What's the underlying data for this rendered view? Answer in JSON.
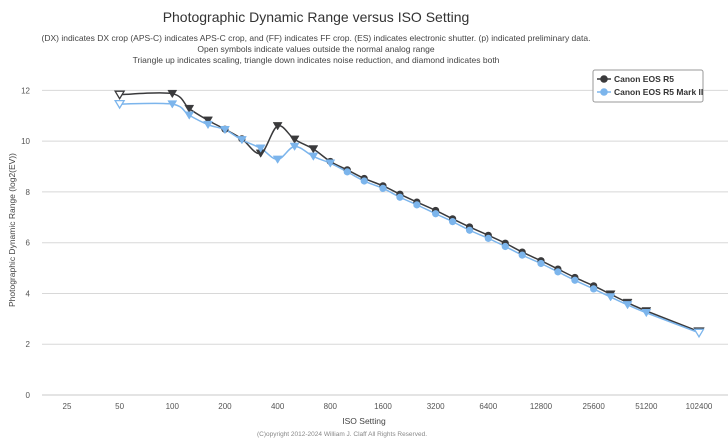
{
  "chart_data": {
    "type": "line",
    "title": "Photographic Dynamic Range versus ISO Setting",
    "subtitle_lines": [
      "(DX) indicates DX crop (APS-C) indicates APS-C crop, and (FF) indicates FF crop. (ES) indicates electronic shutter. (p) indicated preliminary data.",
      "Open symbols indicate values outside the normal analog range",
      "Triangle up indicates scaling, triangle down indicates noise reduction, and diamond indicates both"
    ],
    "xlabel": "ISO Setting",
    "ylabel": "Photographic Dynamic Range (log2(EV))",
    "x_scale": "log2",
    "x_ticks": [
      25,
      50,
      100,
      200,
      400,
      800,
      1600,
      3200,
      6400,
      12800,
      25600,
      51200,
      102400
    ],
    "x_range": [
      18,
      150000
    ],
    "y_ticks": [
      0,
      2,
      4,
      6,
      8,
      10,
      12
    ],
    "ylim": [
      0,
      13
    ],
    "grid": "horizontal",
    "legend_position": "top-right",
    "credit": "(C)opyright 2012-2024 William J. Claff All Rights Reserved.",
    "series": [
      {
        "name": "Canon EOS R5",
        "color": "#3a3a3c",
        "points": [
          {
            "x": 50,
            "y": 11.83,
            "m": "open-down"
          },
          {
            "x": 100,
            "y": 11.87,
            "m": "down"
          },
          {
            "x": 125,
            "y": 11.28,
            "m": "down"
          },
          {
            "x": 160,
            "y": 10.82,
            "m": "down"
          },
          {
            "x": 200,
            "y": 10.47,
            "m": "circle"
          },
          {
            "x": 250,
            "y": 10.09,
            "m": "circle"
          },
          {
            "x": 320,
            "y": 9.52,
            "m": "down"
          },
          {
            "x": 400,
            "y": 10.6,
            "m": "down"
          },
          {
            "x": 500,
            "y": 10.07,
            "m": "down"
          },
          {
            "x": 640,
            "y": 9.69,
            "m": "down"
          },
          {
            "x": 800,
            "y": 9.2,
            "m": "circle"
          },
          {
            "x": 1000,
            "y": 8.87,
            "m": "circle"
          },
          {
            "x": 1250,
            "y": 8.53,
            "m": "circle"
          },
          {
            "x": 1600,
            "y": 8.24,
            "m": "circle"
          },
          {
            "x": 2000,
            "y": 7.91,
            "m": "circle"
          },
          {
            "x": 2500,
            "y": 7.6,
            "m": "circle"
          },
          {
            "x": 3200,
            "y": 7.27,
            "m": "circle"
          },
          {
            "x": 4000,
            "y": 6.94,
            "m": "circle"
          },
          {
            "x": 5000,
            "y": 6.62,
            "m": "circle"
          },
          {
            "x": 6400,
            "y": 6.29,
            "m": "circle"
          },
          {
            "x": 8000,
            "y": 5.98,
            "m": "circle"
          },
          {
            "x": 10000,
            "y": 5.63,
            "m": "circle"
          },
          {
            "x": 12800,
            "y": 5.29,
            "m": "circle"
          },
          {
            "x": 16000,
            "y": 4.96,
            "m": "circle"
          },
          {
            "x": 20000,
            "y": 4.63,
            "m": "circle"
          },
          {
            "x": 25600,
            "y": 4.3,
            "m": "circle"
          },
          {
            "x": 32000,
            "y": 3.97,
            "m": "down"
          },
          {
            "x": 40000,
            "y": 3.64,
            "m": "down"
          },
          {
            "x": 51200,
            "y": 3.31,
            "m": "down"
          },
          {
            "x": 102400,
            "y": 2.5,
            "m": "open-down"
          }
        ]
      },
      {
        "name": "Canon EOS R5 Mark II",
        "color": "#7cb5ec",
        "points": [
          {
            "x": 50,
            "y": 11.46,
            "m": "open-down"
          },
          {
            "x": 100,
            "y": 11.46,
            "m": "down"
          },
          {
            "x": 125,
            "y": 11.02,
            "m": "down"
          },
          {
            "x": 160,
            "y": 10.65,
            "m": "down"
          },
          {
            "x": 200,
            "y": 10.45,
            "m": "down"
          },
          {
            "x": 250,
            "y": 10.05,
            "m": "down"
          },
          {
            "x": 320,
            "y": 9.72,
            "m": "down"
          },
          {
            "x": 400,
            "y": 9.28,
            "m": "down"
          },
          {
            "x": 500,
            "y": 9.79,
            "m": "down"
          },
          {
            "x": 640,
            "y": 9.4,
            "m": "down"
          },
          {
            "x": 800,
            "y": 9.13,
            "m": "down"
          },
          {
            "x": 1000,
            "y": 8.79,
            "m": "circle"
          },
          {
            "x": 1250,
            "y": 8.43,
            "m": "circle"
          },
          {
            "x": 1600,
            "y": 8.14,
            "m": "circle"
          },
          {
            "x": 2000,
            "y": 7.79,
            "m": "circle"
          },
          {
            "x": 2500,
            "y": 7.49,
            "m": "circle"
          },
          {
            "x": 3200,
            "y": 7.14,
            "m": "circle"
          },
          {
            "x": 4000,
            "y": 6.83,
            "m": "circle"
          },
          {
            "x": 5000,
            "y": 6.49,
            "m": "circle"
          },
          {
            "x": 6400,
            "y": 6.17,
            "m": "circle"
          },
          {
            "x": 8000,
            "y": 5.85,
            "m": "circle"
          },
          {
            "x": 10000,
            "y": 5.51,
            "m": "circle"
          },
          {
            "x": 12800,
            "y": 5.18,
            "m": "circle"
          },
          {
            "x": 16000,
            "y": 4.85,
            "m": "circle"
          },
          {
            "x": 20000,
            "y": 4.52,
            "m": "circle"
          },
          {
            "x": 25600,
            "y": 4.18,
            "m": "circle"
          },
          {
            "x": 32000,
            "y": 3.86,
            "m": "down"
          },
          {
            "x": 40000,
            "y": 3.55,
            "m": "down"
          },
          {
            "x": 51200,
            "y": 3.24,
            "m": "down"
          },
          {
            "x": 102400,
            "y": 2.45,
            "m": "open-down"
          }
        ]
      }
    ]
  }
}
